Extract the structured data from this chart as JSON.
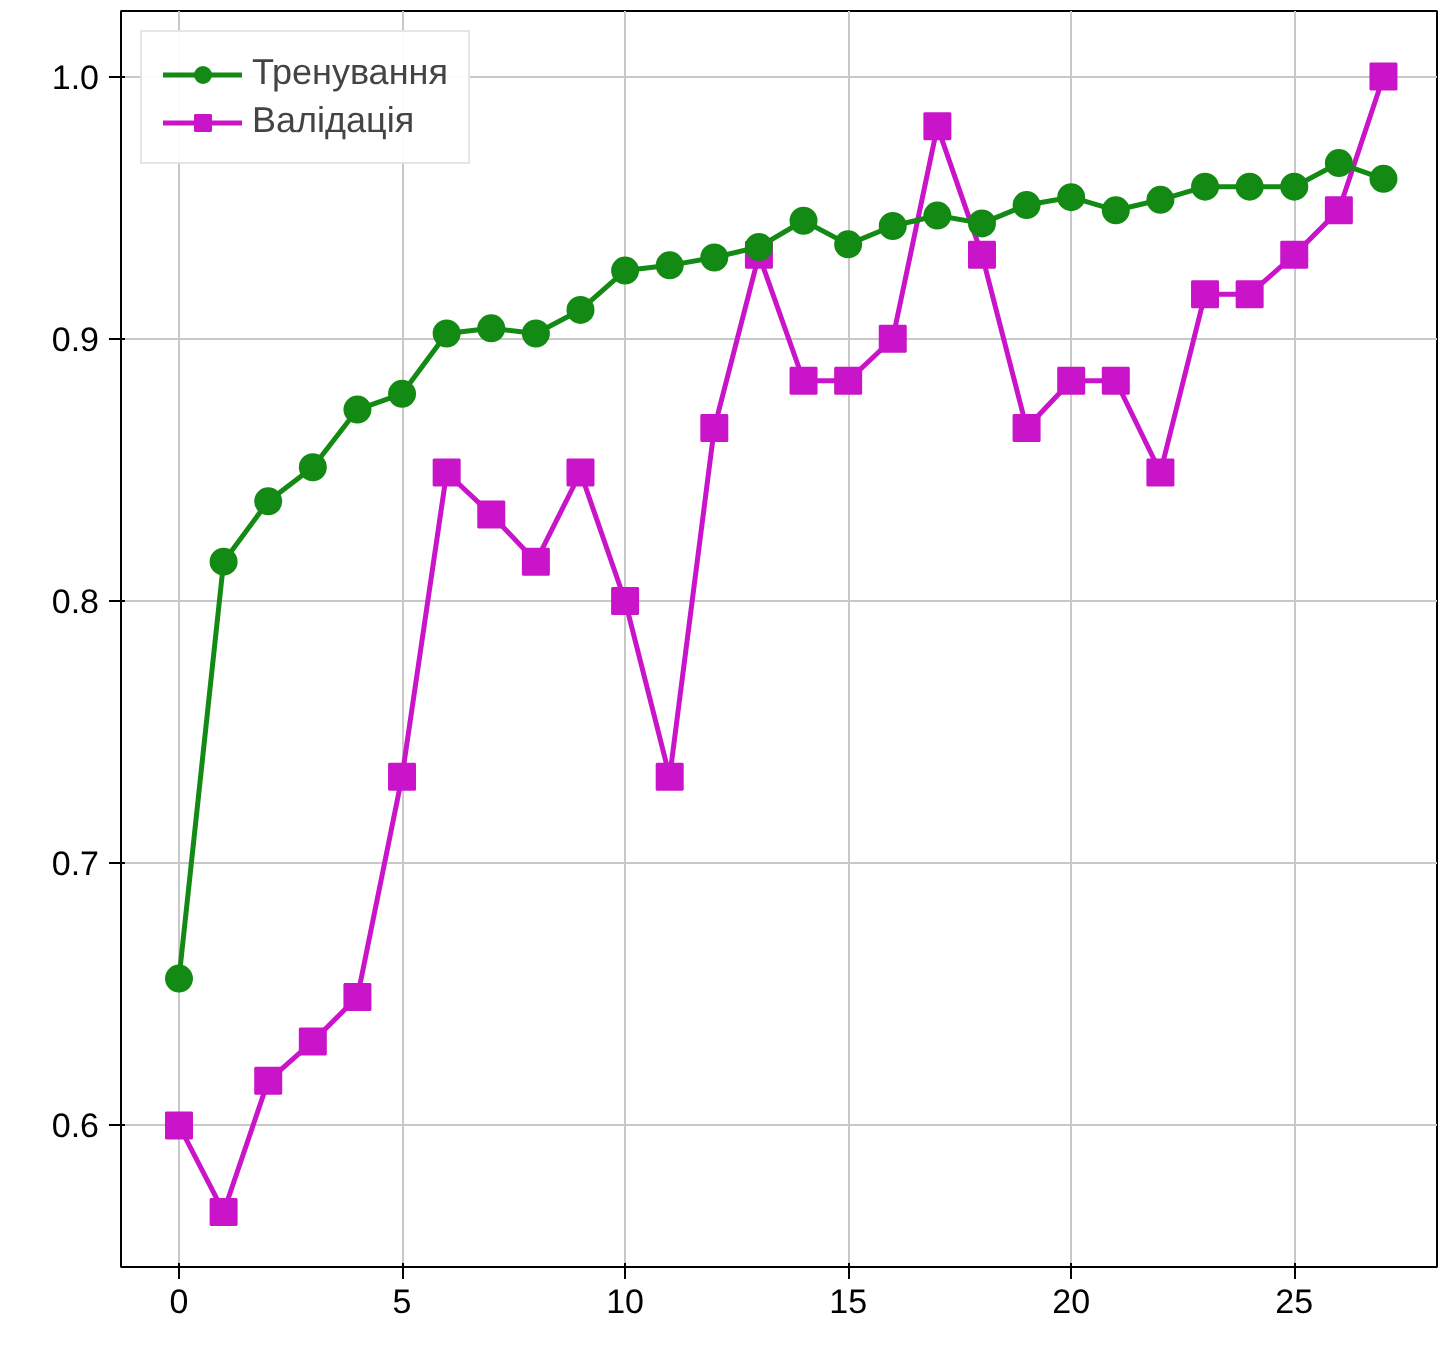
{
  "chart_data": {
    "type": "line",
    "x": [
      0,
      1,
      2,
      3,
      4,
      5,
      6,
      7,
      8,
      9,
      10,
      11,
      12,
      13,
      14,
      15,
      16,
      17,
      18,
      19,
      20,
      21,
      22,
      23,
      24,
      25,
      26,
      27
    ],
    "series": [
      {
        "name": "Тренування",
        "color": "#138a13",
        "marker": "circle",
        "values": [
          0.656,
          0.815,
          0.838,
          0.851,
          0.873,
          0.879,
          0.902,
          0.904,
          0.902,
          0.911,
          0.926,
          0.928,
          0.931,
          0.935,
          0.945,
          0.936,
          0.943,
          0.947,
          0.944,
          0.951,
          0.954,
          0.949,
          0.953,
          0.958,
          0.958,
          0.958,
          0.967,
          0.961
        ]
      },
      {
        "name": "Валідація",
        "color": "#c914c9",
        "marker": "square",
        "values": [
          0.6,
          0.567,
          0.617,
          0.632,
          0.649,
          0.733,
          0.849,
          0.833,
          0.815,
          0.849,
          0.8,
          0.733,
          0.866,
          0.932,
          0.884,
          0.884,
          0.9,
          0.981,
          0.932,
          0.866,
          0.884,
          0.884,
          0.849,
          0.917,
          0.917,
          0.932,
          0.949,
          1.0
        ]
      }
    ],
    "xlim": [
      -1.3,
      28.2
    ],
    "ylim": [
      0.546,
      1.025
    ],
    "xticks": [
      0,
      5,
      10,
      15,
      20,
      25
    ],
    "yticks": [
      {
        "value": 0.6,
        "label": "0.6"
      },
      {
        "value": 0.7,
        "label": "0.7"
      },
      {
        "value": 0.8,
        "label": "0.8"
      },
      {
        "value": 0.9,
        "label": "0.9"
      },
      {
        "value": 1.0,
        "label": "1.0"
      }
    ],
    "grid": true,
    "legend": "top left",
    "line_style": "solid"
  }
}
